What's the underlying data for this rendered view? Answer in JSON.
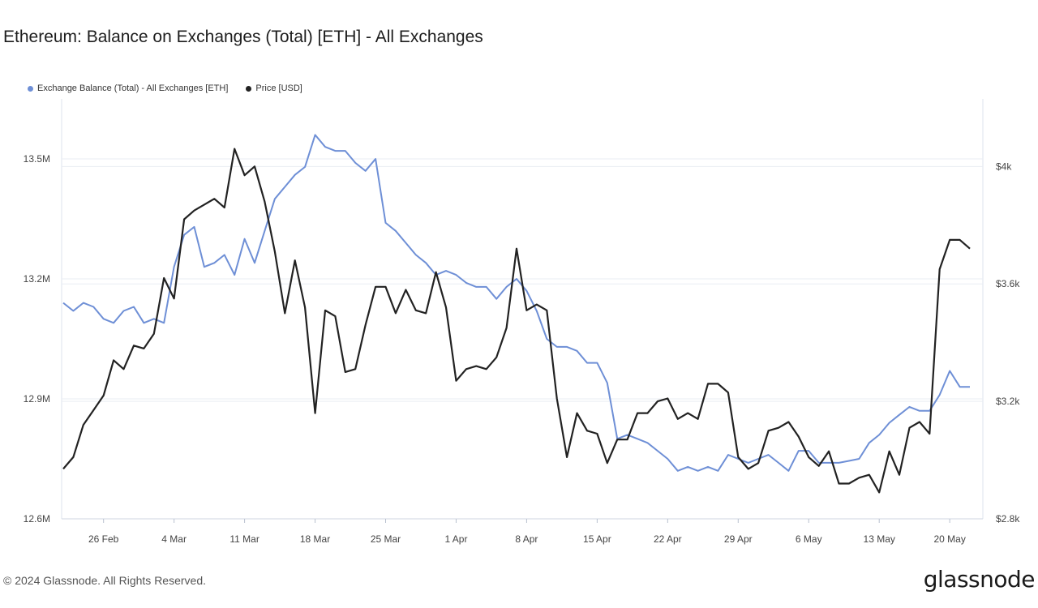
{
  "chart_data": {
    "type": "line",
    "title": "Ethereum: Balance on Exchanges (Total) [ETH] - All Exchanges",
    "x_ticks": [
      "26 Feb",
      "4 Mar",
      "11 Mar",
      "18 Mar",
      "25 Mar",
      "1 Apr",
      "8 Apr",
      "15 Apr",
      "22 Apr",
      "29 Apr",
      "6 May",
      "13 May",
      "20 May"
    ],
    "x_range": [
      "2024-02-22",
      "2024-05-22"
    ],
    "y_left": {
      "ticks": [
        "12.6M",
        "12.9M",
        "13.2M",
        "13.5M"
      ],
      "values": [
        12600000,
        12900000,
        13200000,
        13500000
      ],
      "range": [
        12600000,
        13650000
      ]
    },
    "y_right": {
      "ticks": [
        "$2.8k",
        "$3.2k",
        "$3.6k",
        "$4k"
      ],
      "values": [
        2800,
        3200,
        3600,
        4000
      ],
      "range": [
        2800,
        4230
      ]
    },
    "grid": true,
    "legend_position": "top-left",
    "series": [
      {
        "name": "Exchange Balance (Total) - All Exchanges [ETH]",
        "axis": "left",
        "color": "#6e8fd6",
        "x": [
          "2024-02-22",
          "2024-02-23",
          "2024-02-24",
          "2024-02-25",
          "2024-02-26",
          "2024-02-27",
          "2024-02-28",
          "2024-02-29",
          "2024-03-01",
          "2024-03-02",
          "2024-03-03",
          "2024-03-04",
          "2024-03-05",
          "2024-03-06",
          "2024-03-07",
          "2024-03-08",
          "2024-03-09",
          "2024-03-10",
          "2024-03-11",
          "2024-03-12",
          "2024-03-13",
          "2024-03-14",
          "2024-03-15",
          "2024-03-16",
          "2024-03-17",
          "2024-03-18",
          "2024-03-19",
          "2024-03-20",
          "2024-03-21",
          "2024-03-22",
          "2024-03-23",
          "2024-03-24",
          "2024-03-25",
          "2024-03-26",
          "2024-03-27",
          "2024-03-28",
          "2024-03-29",
          "2024-03-30",
          "2024-03-31",
          "2024-04-01",
          "2024-04-02",
          "2024-04-03",
          "2024-04-04",
          "2024-04-05",
          "2024-04-06",
          "2024-04-07",
          "2024-04-08",
          "2024-04-09",
          "2024-04-10",
          "2024-04-11",
          "2024-04-12",
          "2024-04-13",
          "2024-04-14",
          "2024-04-15",
          "2024-04-16",
          "2024-04-17",
          "2024-04-18",
          "2024-04-19",
          "2024-04-20",
          "2024-04-21",
          "2024-04-22",
          "2024-04-23",
          "2024-04-24",
          "2024-04-25",
          "2024-04-26",
          "2024-04-27",
          "2024-04-28",
          "2024-04-29",
          "2024-04-30",
          "2024-05-01",
          "2024-05-02",
          "2024-05-03",
          "2024-05-04",
          "2024-05-05",
          "2024-05-06",
          "2024-05-07",
          "2024-05-08",
          "2024-05-09",
          "2024-05-10",
          "2024-05-11",
          "2024-05-12",
          "2024-05-13",
          "2024-05-14",
          "2024-05-15",
          "2024-05-16",
          "2024-05-17",
          "2024-05-18",
          "2024-05-19",
          "2024-05-20",
          "2024-05-21",
          "2024-05-22"
        ],
        "values": [
          13140000,
          13120000,
          13140000,
          13130000,
          13100000,
          13090000,
          13120000,
          13130000,
          13090000,
          13100000,
          13090000,
          13230000,
          13310000,
          13330000,
          13230000,
          13240000,
          13260000,
          13210000,
          13300000,
          13240000,
          13320000,
          13400000,
          13430000,
          13460000,
          13480000,
          13560000,
          13530000,
          13520000,
          13520000,
          13490000,
          13470000,
          13500000,
          13340000,
          13320000,
          13290000,
          13260000,
          13240000,
          13210000,
          13220000,
          13210000,
          13190000,
          13180000,
          13180000,
          13150000,
          13180000,
          13200000,
          13170000,
          13120000,
          13050000,
          13030000,
          13030000,
          13020000,
          12990000,
          12990000,
          12940000,
          12800000,
          12810000,
          12800000,
          12790000,
          12770000,
          12750000,
          12720000,
          12730000,
          12720000,
          12730000,
          12720000,
          12760000,
          12750000,
          12740000,
          12750000,
          12760000,
          12740000,
          12720000,
          12770000,
          12770000,
          12740000,
          12740000,
          12740000,
          12745000,
          12750000,
          12790000,
          12810000,
          12840000,
          12860000,
          12880000,
          12870000,
          12870000,
          12910000,
          12970000,
          12930000,
          12930000
        ]
      },
      {
        "name": "Price [USD]",
        "axis": "right",
        "color": "#222222",
        "x": [
          "2024-02-22",
          "2024-02-23",
          "2024-02-24",
          "2024-02-25",
          "2024-02-26",
          "2024-02-27",
          "2024-02-28",
          "2024-02-29",
          "2024-03-01",
          "2024-03-02",
          "2024-03-03",
          "2024-03-04",
          "2024-03-05",
          "2024-03-06",
          "2024-03-07",
          "2024-03-08",
          "2024-03-09",
          "2024-03-10",
          "2024-03-11",
          "2024-03-12",
          "2024-03-13",
          "2024-03-14",
          "2024-03-15",
          "2024-03-16",
          "2024-03-17",
          "2024-03-18",
          "2024-03-19",
          "2024-03-20",
          "2024-03-21",
          "2024-03-22",
          "2024-03-23",
          "2024-03-24",
          "2024-03-25",
          "2024-03-26",
          "2024-03-27",
          "2024-03-28",
          "2024-03-29",
          "2024-03-30",
          "2024-03-31",
          "2024-04-01",
          "2024-04-02",
          "2024-04-03",
          "2024-04-04",
          "2024-04-05",
          "2024-04-06",
          "2024-04-07",
          "2024-04-08",
          "2024-04-09",
          "2024-04-10",
          "2024-04-11",
          "2024-04-12",
          "2024-04-13",
          "2024-04-14",
          "2024-04-15",
          "2024-04-16",
          "2024-04-17",
          "2024-04-18",
          "2024-04-19",
          "2024-04-20",
          "2024-04-21",
          "2024-04-22",
          "2024-04-23",
          "2024-04-24",
          "2024-04-25",
          "2024-04-26",
          "2024-04-27",
          "2024-04-28",
          "2024-04-29",
          "2024-04-30",
          "2024-05-01",
          "2024-05-02",
          "2024-05-03",
          "2024-05-04",
          "2024-05-05",
          "2024-05-06",
          "2024-05-07",
          "2024-05-08",
          "2024-05-09",
          "2024-05-10",
          "2024-05-11",
          "2024-05-12",
          "2024-05-13",
          "2024-05-14",
          "2024-05-15",
          "2024-05-16",
          "2024-05-17",
          "2024-05-18",
          "2024-05-19",
          "2024-05-20",
          "2024-05-21",
          "2024-05-22"
        ],
        "values": [
          2970,
          3010,
          3120,
          3170,
          3220,
          3340,
          3310,
          3390,
          3380,
          3430,
          3620,
          3550,
          3820,
          3850,
          3870,
          3890,
          3860,
          4060,
          3970,
          4000,
          3880,
          3710,
          3500,
          3680,
          3520,
          3160,
          3510,
          3490,
          3300,
          3310,
          3460,
          3590,
          3590,
          3500,
          3580,
          3510,
          3500,
          3640,
          3520,
          3270,
          3310,
          3320,
          3310,
          3350,
          3450,
          3720,
          3510,
          3530,
          3510,
          3210,
          3010,
          3160,
          3100,
          3090,
          2990,
          3070,
          3070,
          3160,
          3160,
          3200,
          3210,
          3140,
          3160,
          3140,
          3260,
          3260,
          3230,
          3010,
          2970,
          2990,
          3100,
          3110,
          3130,
          3080,
          3010,
          2980,
          3030,
          2920,
          2920,
          2940,
          2950,
          2890,
          3030,
          2950,
          3110,
          3130,
          3090,
          3650,
          3750,
          3750,
          3720
        ]
      }
    ]
  },
  "footer": {
    "copyright": "© 2024 Glassnode. All Rights Reserved.",
    "logo": "glassnode"
  }
}
